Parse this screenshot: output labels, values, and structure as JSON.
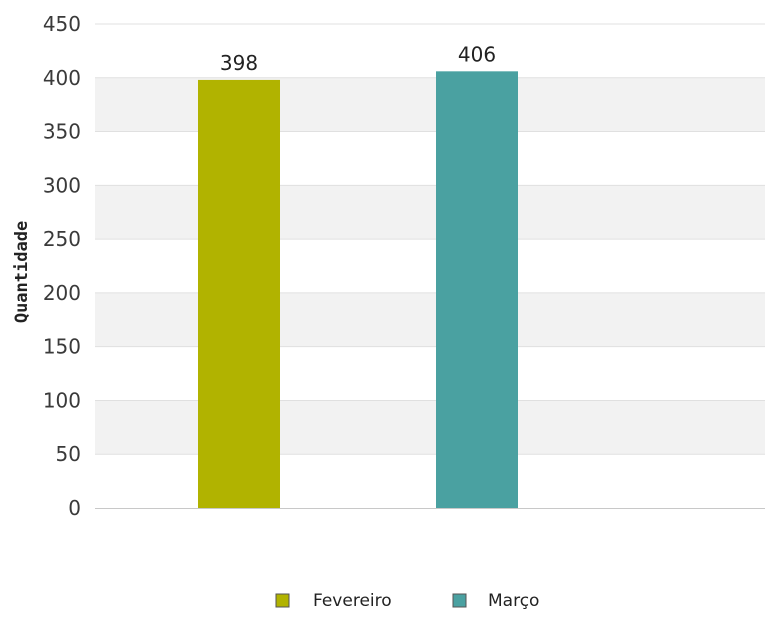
{
  "chart_data": {
    "type": "bar",
    "categories": [
      "Fevereiro",
      "Março"
    ],
    "values": [
      398,
      406
    ],
    "colors": [
      "#b1b300",
      "#4aa1a1"
    ],
    "title": "",
    "xlabel": "",
    "ylabel": "Quantidade",
    "ylim": [
      0,
      450
    ],
    "yticks": [
      0,
      50,
      100,
      150,
      200,
      250,
      300,
      350,
      400,
      450
    ],
    "grid": true,
    "banding_color": "#f2f2f2",
    "gridline_color": "#e0e0e0",
    "legend": {
      "placement": "bottom",
      "entries": [
        "Fevereiro",
        "Março"
      ]
    }
  }
}
